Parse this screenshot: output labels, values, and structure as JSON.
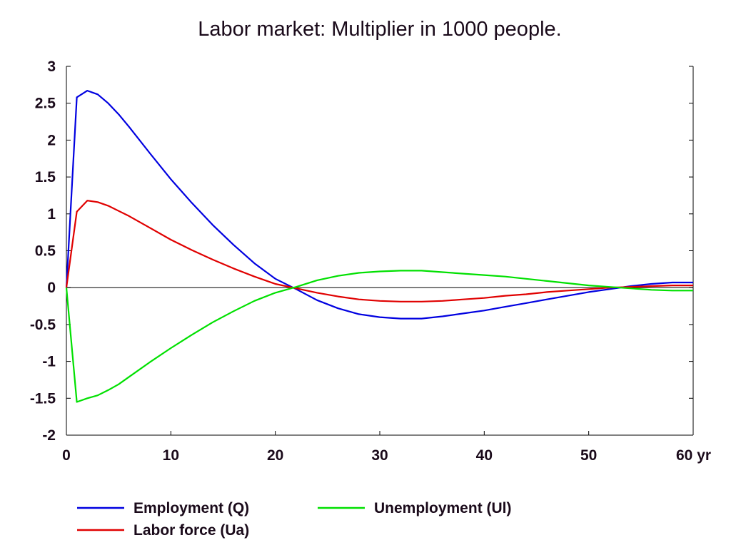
{
  "chart_data": {
    "type": "line",
    "title": "Labor market: Multiplier in 1000 people.",
    "xlabel": "",
    "ylabel": "",
    "x_unit_label": "yr",
    "xlim": [
      0,
      60
    ],
    "ylim": [
      -2,
      3
    ],
    "x_ticks": [
      0,
      10,
      20,
      30,
      40,
      50,
      60
    ],
    "x_tick_labels": [
      "0",
      "10",
      "20",
      "30",
      "40",
      "50",
      "60 yr"
    ],
    "y_ticks": [
      3,
      2.5,
      2,
      1.5,
      1,
      0.5,
      0,
      -0.5,
      -1,
      -1.5,
      -2
    ],
    "y_tick_labels": [
      "3",
      "2.5",
      "2",
      "1.5",
      "1",
      "0.5",
      "0",
      "-0.5",
      "-1",
      "-1.5",
      "-2"
    ],
    "grid": false,
    "legend_position": "bottom",
    "series": [
      {
        "name": "Employment (Q)",
        "color": "#0000e0",
        "x": [
          0,
          1,
          2,
          3,
          4,
          5,
          6,
          8,
          10,
          12,
          14,
          16,
          18,
          20,
          22,
          24,
          26,
          28,
          30,
          32,
          33,
          34,
          36,
          38,
          40,
          42,
          44,
          46,
          48,
          50,
          52,
          54,
          56,
          58,
          60
        ],
        "values": [
          0,
          2.58,
          2.67,
          2.62,
          2.5,
          2.35,
          2.18,
          1.82,
          1.47,
          1.15,
          0.85,
          0.58,
          0.33,
          0.12,
          -0.02,
          -0.17,
          -0.28,
          -0.36,
          -0.4,
          -0.42,
          -0.42,
          -0.42,
          -0.39,
          -0.35,
          -0.31,
          -0.26,
          -0.21,
          -0.16,
          -0.11,
          -0.06,
          -0.02,
          0.02,
          0.05,
          0.07,
          0.07
        ]
      },
      {
        "name": "Labor force (Ua)",
        "color": "#e00000",
        "x": [
          0,
          1,
          2,
          3,
          4,
          5,
          6,
          8,
          10,
          12,
          14,
          16,
          18,
          20,
          22,
          24,
          26,
          28,
          30,
          32,
          33,
          34,
          36,
          38,
          40,
          42,
          44,
          46,
          48,
          50,
          52,
          54,
          56,
          58,
          60
        ],
        "values": [
          0,
          1.03,
          1.18,
          1.16,
          1.11,
          1.04,
          0.97,
          0.81,
          0.65,
          0.51,
          0.38,
          0.26,
          0.15,
          0.05,
          -0.01,
          -0.07,
          -0.12,
          -0.16,
          -0.18,
          -0.19,
          -0.19,
          -0.19,
          -0.18,
          -0.16,
          -0.14,
          -0.11,
          -0.09,
          -0.06,
          -0.04,
          -0.02,
          0.0,
          0.01,
          0.02,
          0.03,
          0.03
        ]
      },
      {
        "name": "Unemployment (Ul)",
        "color": "#00e000",
        "x": [
          0,
          1,
          2,
          3,
          4,
          5,
          6,
          8,
          10,
          12,
          14,
          16,
          18,
          20,
          22,
          24,
          26,
          28,
          30,
          32,
          33,
          34,
          36,
          38,
          40,
          42,
          44,
          46,
          48,
          50,
          52,
          54,
          56,
          58,
          60
        ],
        "values": [
          0,
          -1.55,
          -1.5,
          -1.46,
          -1.39,
          -1.31,
          -1.21,
          -1.01,
          -0.82,
          -0.64,
          -0.47,
          -0.32,
          -0.18,
          -0.07,
          0.01,
          0.1,
          0.16,
          0.2,
          0.22,
          0.23,
          0.23,
          0.23,
          0.21,
          0.19,
          0.17,
          0.15,
          0.12,
          0.09,
          0.06,
          0.03,
          0.01,
          -0.01,
          -0.03,
          -0.04,
          -0.04
        ]
      }
    ]
  }
}
